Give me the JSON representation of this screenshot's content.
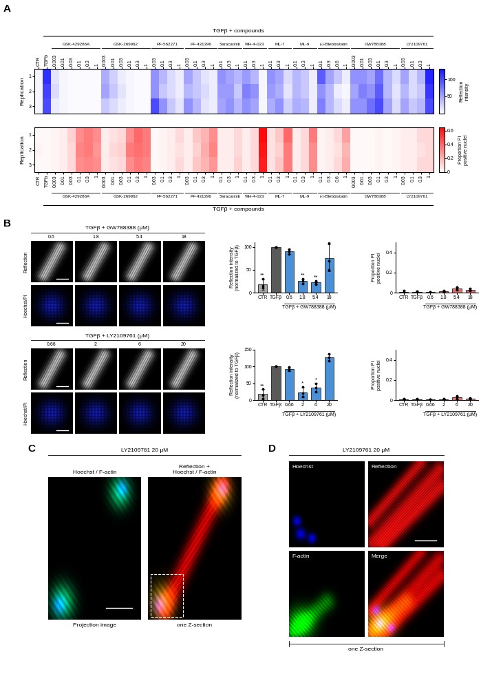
{
  "panel_letters": [
    "A",
    "B",
    "C",
    "D"
  ],
  "chart_data": [
    {
      "type": "heatmap",
      "header": "TGFβ + compounds",
      "y_label": "Replication",
      "rows": [
        1,
        2,
        3
      ],
      "controls": [
        "CTR",
        "TGFb"
      ],
      "groups": [
        {
          "name": "GSK-429286A",
          "doses": [
            0.003,
            0.01,
            0.03,
            0.1,
            0.3,
            1
          ]
        },
        {
          "name": "GSK-269962",
          "doses": [
            0.003,
            0.01,
            0.03,
            0.1,
            0.3,
            1
          ]
        },
        {
          "name": "PF-562271",
          "doses": [
            0.03,
            0.1,
            0.3,
            1
          ]
        },
        {
          "name": "PF-431396",
          "doses": [
            0.03,
            0.1,
            0.3,
            1
          ]
        },
        {
          "name": "Saracatinib",
          "doses": [
            0.1,
            0.3,
            1
          ]
        },
        {
          "name": "WH-4-023",
          "doses": [
            0.1,
            0.3,
            1
          ]
        },
        {
          "name": "ML-7",
          "doses": [
            0.1,
            0.3,
            1
          ]
        },
        {
          "name": "ML-9",
          "doses": [
            0.1,
            0.3,
            1
          ]
        },
        {
          "name": "(-)-Blebbistatin",
          "doses": [
            0.1,
            0.3,
            0.6,
            1
          ]
        },
        {
          "name": "GW788388",
          "doses": [
            0.003,
            0.01,
            0.03,
            0.1,
            0.3,
            1
          ]
        },
        {
          "name": "LY2109761",
          "doses": [
            0.03,
            0.1,
            0.3,
            1
          ]
        }
      ],
      "cells": [
        [
          5,
          115,
          15,
          5,
          3,
          3,
          3,
          3,
          45,
          25,
          10,
          5,
          3,
          3,
          60,
          40,
          20,
          10,
          50,
          30,
          15,
          10,
          60,
          50,
          40,
          55,
          40,
          5,
          60,
          50,
          20,
          40,
          30,
          10,
          90,
          50,
          30,
          10,
          60,
          60,
          50,
          80,
          40,
          20,
          50,
          20,
          40,
          120
        ],
        [
          5,
          105,
          20,
          5,
          3,
          3,
          3,
          3,
          50,
          30,
          15,
          5,
          3,
          3,
          60,
          30,
          20,
          10,
          40,
          30,
          20,
          10,
          55,
          55,
          30,
          70,
          60,
          5,
          55,
          45,
          15,
          40,
          30,
          10,
          60,
          40,
          10,
          5,
          50,
          70,
          60,
          90,
          40,
          15,
          40,
          20,
          30,
          110
        ],
        [
          5,
          100,
          10,
          5,
          3,
          3,
          3,
          3,
          30,
          20,
          10,
          5,
          3,
          3,
          100,
          60,
          30,
          15,
          60,
          40,
          15,
          10,
          50,
          60,
          40,
          60,
          50,
          5,
          45,
          60,
          25,
          45,
          40,
          10,
          70,
          40,
          20,
          10,
          60,
          60,
          80,
          100,
          50,
          20,
          50,
          30,
          40,
          100
        ]
      ],
      "color": "#1414ff",
      "colorbar_label": "Reflection\nintensity",
      "colorbar_range": [
        0,
        130
      ],
      "colorbar_ticks": [
        50,
        100
      ],
      "tick_side": "top"
    },
    {
      "type": "heatmap",
      "header": "TGFβ + compounds",
      "y_label": "Replication",
      "rows": [
        1,
        2,
        3
      ],
      "controls": [
        "CTR",
        "TGFb"
      ],
      "groups": [
        {
          "name": "GSK-429286A",
          "doses": [
            0.003,
            0.01,
            0.03,
            0.1,
            0.3,
            1
          ]
        },
        {
          "name": "GSK-269962",
          "doses": [
            0.003,
            0.01,
            0.03,
            0.1,
            0.3,
            1
          ]
        },
        {
          "name": "PF-562271",
          "doses": [
            0.03,
            0.1,
            0.3,
            1
          ]
        },
        {
          "name": "PF-431396",
          "doses": [
            0.03,
            0.1,
            0.3,
            1
          ]
        },
        {
          "name": "Saracatinib",
          "doses": [
            0.1,
            0.3,
            1
          ]
        },
        {
          "name": "WH-4-023",
          "doses": [
            0.1,
            0.3,
            1
          ]
        },
        {
          "name": "ML-7",
          "doses": [
            0.1,
            0.3,
            1
          ]
        },
        {
          "name": "ML-9",
          "doses": [
            0.1,
            0.3,
            1
          ]
        },
        {
          "name": "(-)-Blebbistatin",
          "doses": [
            0.1,
            0.3,
            0.6,
            1
          ]
        },
        {
          "name": "GW788388",
          "doses": [
            0.003,
            0.01,
            0.03,
            0.1,
            0.3,
            1
          ]
        },
        {
          "name": "LY2109761",
          "doses": [
            0.03,
            0.1,
            0.3,
            1
          ]
        }
      ],
      "cells": [
        [
          0.02,
          0.02,
          0.03,
          0.05,
          0.12,
          0.3,
          0.35,
          0.3,
          0.05,
          0.08,
          0.1,
          0.3,
          0.4,
          0.35,
          0.02,
          0.03,
          0.05,
          0.1,
          0.05,
          0.15,
          0.2,
          0.3,
          0.05,
          0.05,
          0.1,
          0.05,
          0.1,
          0.65,
          0.08,
          0.15,
          0.4,
          0.05,
          0.1,
          0.35,
          0.03,
          0.05,
          0.1,
          0.25,
          0.02,
          0.02,
          0.02,
          0.03,
          0.02,
          0.03,
          0.05,
          0.05,
          0.1,
          0.1
        ],
        [
          0.03,
          0.02,
          0.03,
          0.05,
          0.1,
          0.32,
          0.35,
          0.28,
          0.05,
          0.1,
          0.12,
          0.35,
          0.38,
          0.35,
          0.02,
          0.03,
          0.05,
          0.08,
          0.05,
          0.12,
          0.22,
          0.32,
          0.05,
          0.05,
          0.1,
          0.05,
          0.1,
          0.62,
          0.08,
          0.12,
          0.35,
          0.05,
          0.1,
          0.3,
          0.03,
          0.05,
          0.08,
          0.2,
          0.02,
          0.02,
          0.02,
          0.03,
          0.02,
          0.03,
          0.05,
          0.05,
          0.08,
          0.1
        ],
        [
          0.02,
          0.02,
          0.03,
          0.05,
          0.1,
          0.3,
          0.32,
          0.3,
          0.05,
          0.08,
          0.1,
          0.3,
          0.36,
          0.33,
          0.02,
          0.03,
          0.05,
          0.1,
          0.05,
          0.15,
          0.2,
          0.28,
          0.05,
          0.05,
          0.12,
          0.05,
          0.1,
          0.6,
          0.08,
          0.15,
          0.35,
          0.05,
          0.1,
          0.3,
          0.03,
          0.05,
          0.1,
          0.22,
          0.02,
          0.02,
          0.02,
          0.03,
          0.02,
          0.03,
          0.05,
          0.05,
          0.1,
          0.1
        ]
      ],
      "color": "#ff0a0a",
      "colorbar_label": "Proportion PI\npositive nuclei",
      "colorbar_range": [
        0,
        0.65
      ],
      "colorbar_ticks": [
        0,
        0.2,
        0.4,
        0.6
      ],
      "tick_side": "bottom"
    },
    {
      "type": "bar",
      "ylabel": "Reflection intensity\n(normalized to TGFβ)",
      "controls": [
        "CTR",
        "TGFβ"
      ],
      "doses": [
        0.6,
        1.8,
        5.4,
        18
      ],
      "group_label": "TGFβ + GW788388 (μM)",
      "values": [
        18,
        100,
        90,
        25,
        22,
        76
      ],
      "errors": [
        12,
        0,
        6,
        5,
        4,
        30
      ],
      "points": [
        [
          10,
          15,
          30
        ],
        [
          100,
          100,
          100
        ],
        [
          85,
          90,
          95
        ],
        [
          20,
          25,
          30
        ],
        [
          18,
          22,
          26
        ],
        [
          50,
          70,
          108
        ]
      ],
      "significance": [
        "**",
        null,
        null,
        "**",
        "**",
        null
      ],
      "colors": [
        "#a6a6a6",
        "#5a5a5a",
        "#4a90d9",
        "#4a90d9",
        "#4a90d9",
        "#4a90d9"
      ],
      "ylim": [
        0,
        110
      ],
      "yticks": [
        0,
        50,
        100
      ]
    },
    {
      "type": "bar",
      "ylabel": "Proportion PI\npositive nuclei",
      "controls": [
        "CTR",
        "TGFβ"
      ],
      "doses": [
        0.6,
        1.8,
        5.4,
        18
      ],
      "group_label": "TGFβ + GW788388 (μM)",
      "values": [
        0.01,
        0.01,
        0.005,
        0.015,
        0.04,
        0.03
      ],
      "errors": [
        0.01,
        0.01,
        0.003,
        0.005,
        0.015,
        0.01
      ],
      "points": [
        [
          0.0,
          0.01,
          0.02
        ],
        [
          0.005,
          0.01,
          0.015
        ],
        [
          0.0,
          0.005,
          0.01
        ],
        [
          0.01,
          0.015,
          0.02
        ],
        [
          0.03,
          0.04,
          0.055
        ],
        [
          0.02,
          0.03,
          0.04
        ]
      ],
      "colors": [
        "#a6a6a6",
        "#5a5a5a",
        "#e07070",
        "#e07070",
        "#e07070",
        "#e07070"
      ],
      "ylim": [
        0,
        0.5
      ],
      "yticks": [
        0,
        0.2,
        0.4
      ]
    },
    {
      "type": "bar",
      "ylabel": "Reflection intensity\n(normalized to TGFβ)",
      "controls": [
        "CTR",
        "TGFβ"
      ],
      "doses": [
        0.66,
        2,
        6,
        20
      ],
      "group_label": "TGFβ + LY2109761 (μM)",
      "values": [
        18,
        100,
        93,
        23,
        37,
        128
      ],
      "errors": [
        14,
        0,
        6,
        15,
        12,
        10
      ],
      "points": [
        [
          5,
          15,
          32
        ],
        [
          100,
          100,
          100
        ],
        [
          88,
          93,
          98
        ],
        [
          10,
          20,
          40
        ],
        [
          25,
          38,
          50
        ],
        [
          118,
          128,
          138
        ]
      ],
      "significance": [
        "**",
        null,
        null,
        "*",
        "*",
        null
      ],
      "colors": [
        "#a6a6a6",
        "#5a5a5a",
        "#4a90d9",
        "#4a90d9",
        "#4a90d9",
        "#4a90d9"
      ],
      "ylim": [
        0,
        150
      ],
      "yticks": [
        0,
        50,
        100,
        150
      ]
    },
    {
      "type": "bar",
      "ylabel": "Proportion PI\npositive nuclei",
      "controls": [
        "CTR",
        "TGFβ"
      ],
      "doses": [
        0.66,
        2,
        6,
        20
      ],
      "group_label": "TGFβ + LY2109761 (μM)",
      "values": [
        0.01,
        0.01,
        0.005,
        0.01,
        0.025,
        0.015
      ],
      "errors": [
        0.005,
        0.005,
        0.003,
        0.005,
        0.015,
        0.005
      ],
      "points": [
        [
          0.005,
          0.01,
          0.015
        ],
        [
          0.005,
          0.01,
          0.015
        ],
        [
          0.0,
          0.005,
          0.01
        ],
        [
          0.005,
          0.01,
          0.015
        ],
        [
          0.01,
          0.025,
          0.04
        ],
        [
          0.01,
          0.015,
          0.02
        ]
      ],
      "colors": [
        "#a6a6a6",
        "#5a5a5a",
        "#e07070",
        "#e07070",
        "#e07070",
        "#e07070"
      ],
      "ylim": [
        0,
        0.5
      ],
      "yticks": [
        0,
        0.2,
        0.4
      ]
    }
  ],
  "micrographs": [
    {
      "title": "TGFβ + GW788388 (μM)",
      "doses": [
        0.6,
        1.8,
        5.4,
        18
      ],
      "rows": [
        "Reflection",
        "Hoechst/PI"
      ]
    },
    {
      "title": "TGFβ + LY2109761 (μM)",
      "doses": [
        0.66,
        2,
        6,
        20
      ],
      "rows": [
        "Reflection",
        "Hoechst/PI"
      ]
    },
    {
      "title": "LY2109761 20 μM",
      "panels": [
        {
          "label": "Hoechst / F-actin",
          "caption": "Projection image"
        },
        {
          "label": "Reflection +\nHoechst / F-actin",
          "caption": "one Z-section"
        }
      ]
    },
    {
      "title": "LY2109761 20 μM",
      "panels": [
        {
          "label": "Hoechst"
        },
        {
          "label": "Reflection"
        },
        {
          "label": "F-actin"
        },
        {
          "label": "Merge"
        }
      ],
      "caption": "one Z-section"
    }
  ]
}
